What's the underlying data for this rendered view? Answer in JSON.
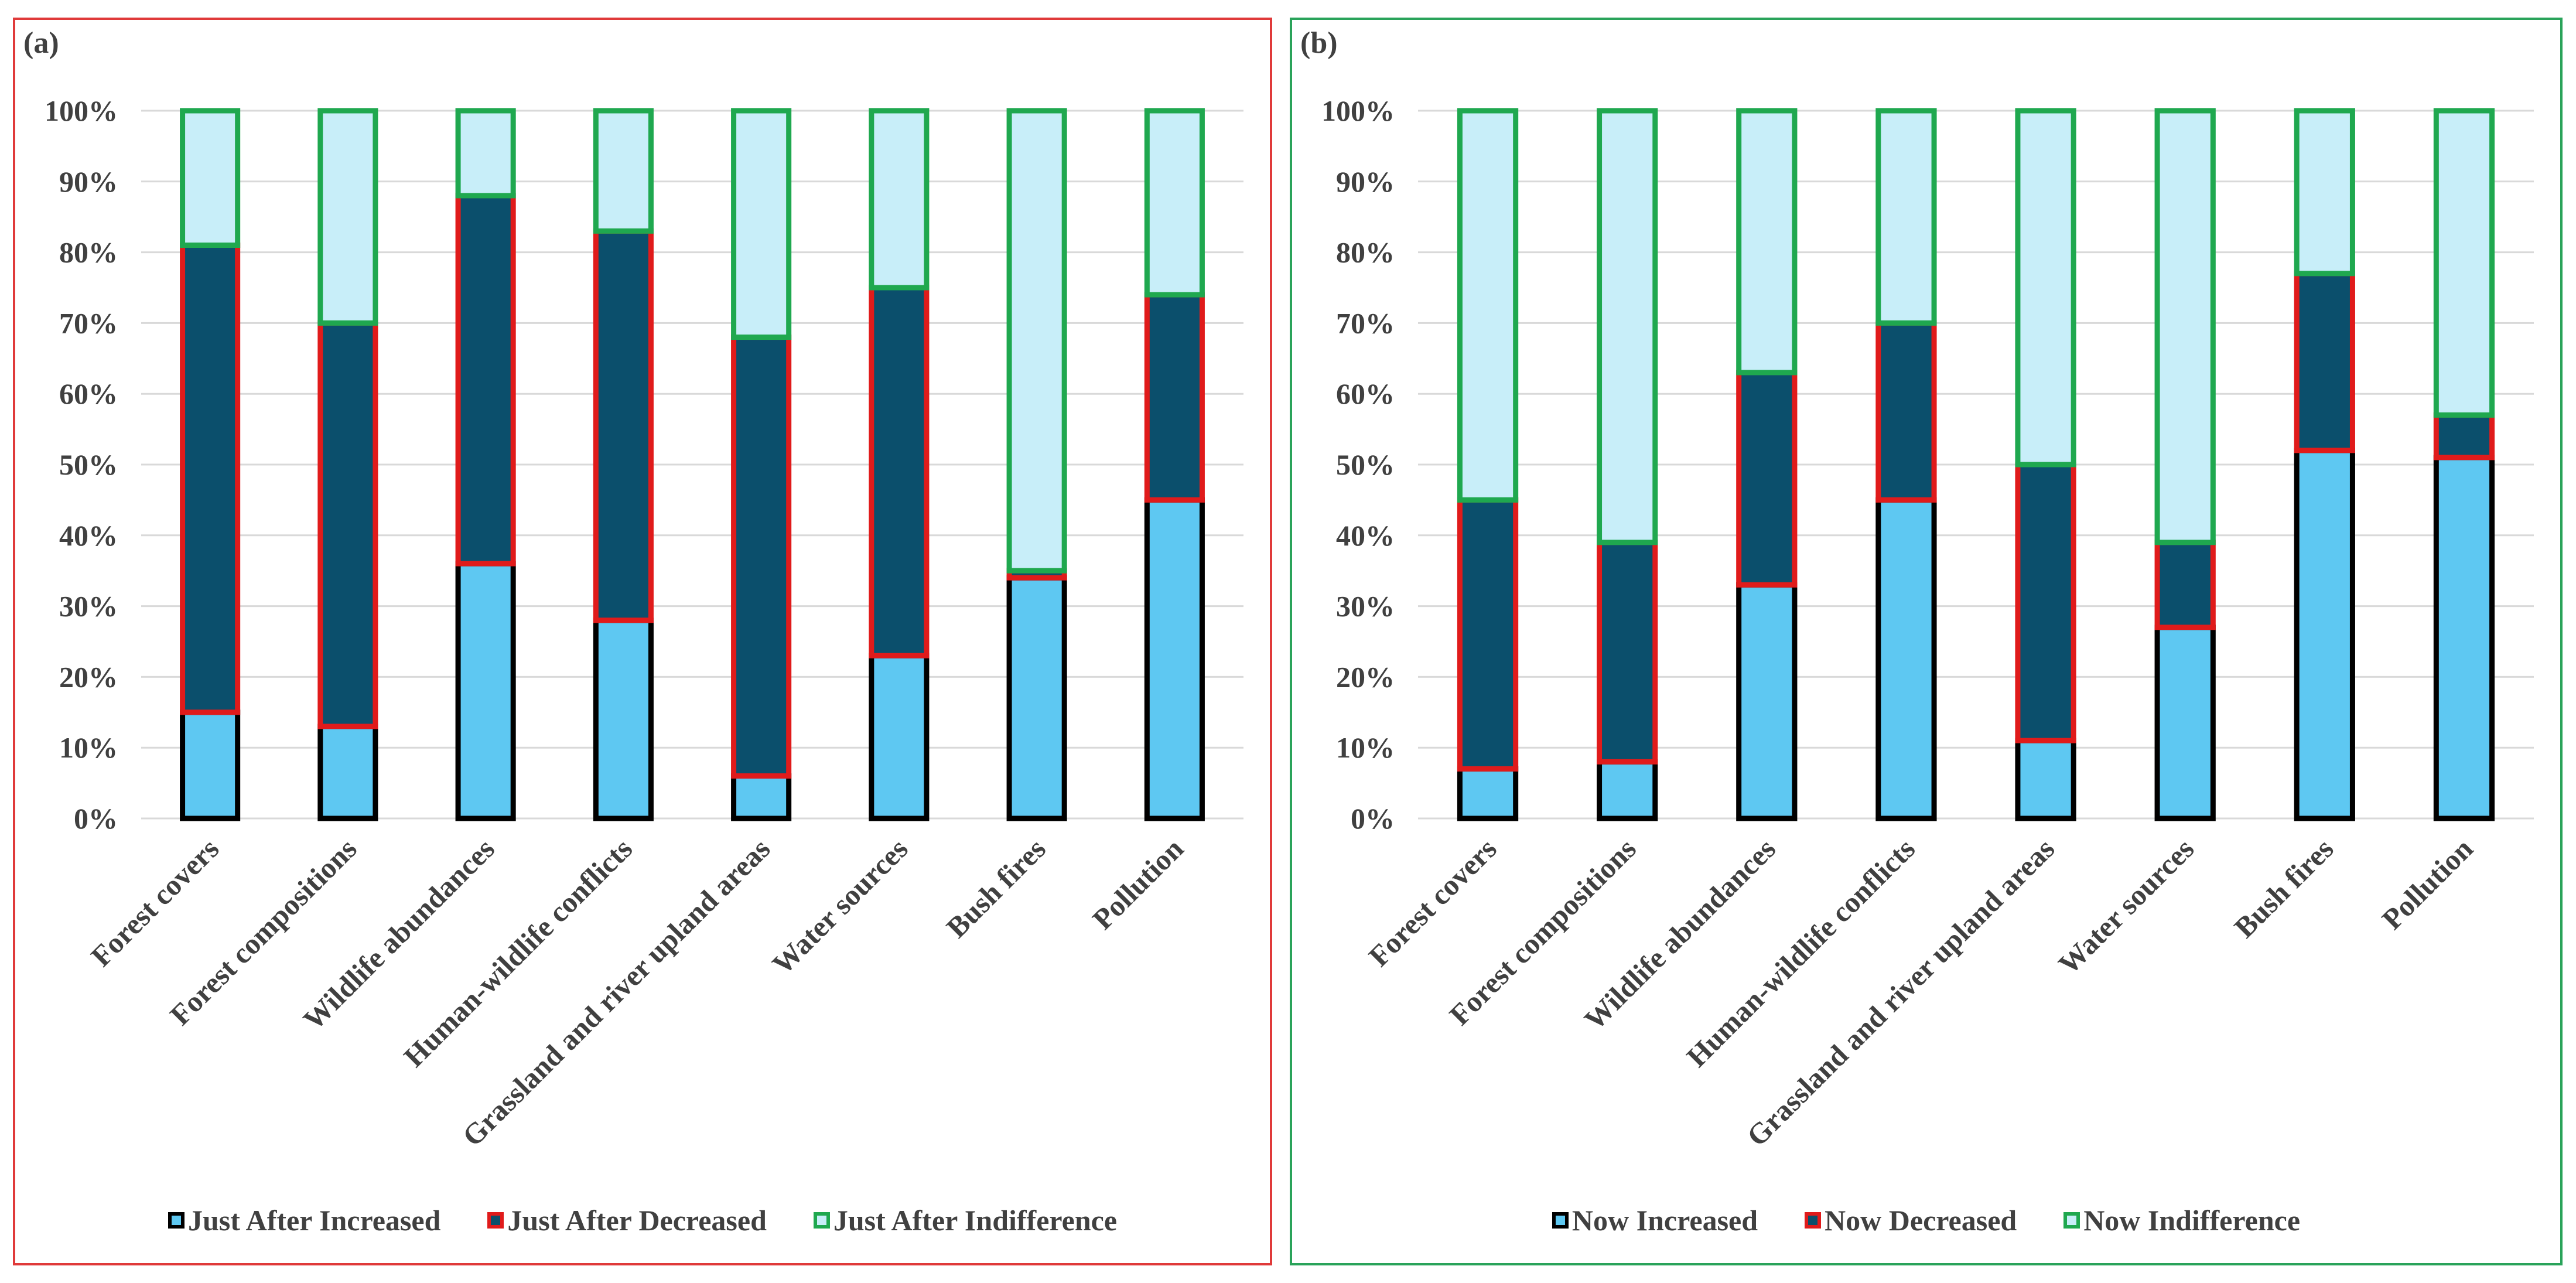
{
  "colors": {
    "increased_fill": "#5ec8f2",
    "decreased_fill": "#0b4f6c",
    "indifference_fill": "#c8eef9",
    "increased_border": "#000000",
    "decreased_border": "#e01b1b",
    "indifference_border": "#1fa84f",
    "gridline": "#d9d9d9",
    "text": "#404040"
  },
  "chart_data": [
    {
      "panel_label": "(a)",
      "type": "bar",
      "stacked": true,
      "categories": [
        "Forest covers",
        "Forest compositions",
        "Wildlife abundances",
        "Human-wildlife conflicts",
        "Grassland and river upland areas",
        "Water sources",
        "Bush fires",
        "Pollution"
      ],
      "series": [
        {
          "name": "Just After Increased",
          "values": [
            15,
            13,
            36,
            28,
            6,
            23,
            34,
            45
          ]
        },
        {
          "name": "Just After Decreased",
          "values": [
            66,
            57,
            52,
            55,
            62,
            52,
            1,
            29
          ]
        },
        {
          "name": "Just After Indifference",
          "values": [
            19,
            30,
            12,
            17,
            32,
            25,
            65,
            26
          ]
        }
      ],
      "ylim": [
        0,
        100
      ],
      "yticks": [
        "0%",
        "10%",
        "20%",
        "30%",
        "40%",
        "50%",
        "60%",
        "70%",
        "80%",
        "90%",
        "100%"
      ],
      "grid": true,
      "legend_position": "bottom"
    },
    {
      "panel_label": "(b)",
      "type": "bar",
      "stacked": true,
      "categories": [
        "Forest covers",
        "Forest compositions",
        "Wildlife abundances",
        "Human-wildlife conflicts",
        "Grassland and river upland areas",
        "Water sources",
        "Bush fires",
        "Pollution"
      ],
      "series": [
        {
          "name": "Now Increased",
          "values": [
            7,
            8,
            33,
            45,
            11,
            27,
            52,
            51
          ]
        },
        {
          "name": "Now Decreased",
          "values": [
            38,
            31,
            30,
            25,
            39,
            12,
            25,
            6
          ]
        },
        {
          "name": "Now Indifference",
          "values": [
            55,
            61,
            37,
            30,
            50,
            61,
            23,
            43
          ]
        }
      ],
      "ylim": [
        0,
        100
      ],
      "yticks": [
        "0%",
        "10%",
        "20%",
        "30%",
        "40%",
        "50%",
        "60%",
        "70%",
        "80%",
        "90%",
        "100%"
      ],
      "grid": true,
      "legend_position": "bottom"
    }
  ]
}
